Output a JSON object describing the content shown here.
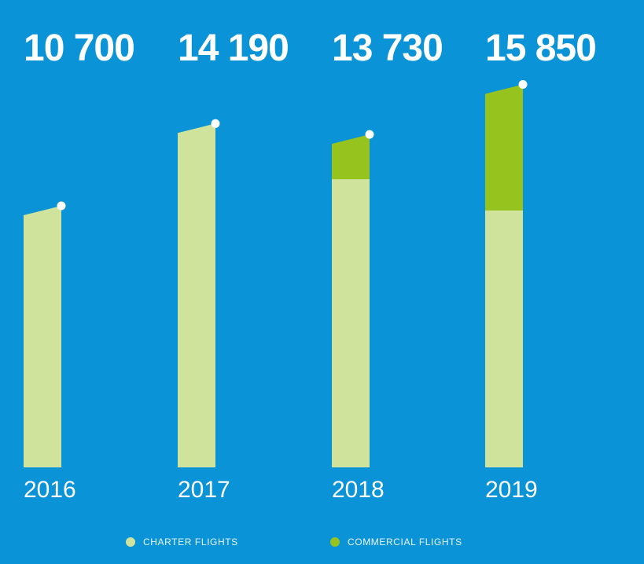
{
  "theme": {
    "background": "#0a93d6",
    "charter_color": "#d0e39d",
    "commercial_color": "#97c31e",
    "text_color": "#ffffff",
    "dot_color": "#ffffff",
    "legend_text_color": "#e9f6ff"
  },
  "chart_data": {
    "type": "bar",
    "categories": [
      "2016",
      "2017",
      "2018",
      "2019"
    ],
    "totals_display": [
      "10 700",
      "14 190",
      "13 730",
      "15 850"
    ],
    "series": [
      {
        "name": "CHARTER FLIGHTS",
        "values": [
          10700,
          14190,
          12230,
          10900
        ]
      },
      {
        "name": "COMMERCIAL FLIGHTS",
        "values": [
          0,
          0,
          1500,
          4950
        ]
      }
    ],
    "ylim": [
      0,
      17000
    ],
    "grid": false,
    "legend": "bottom-center"
  }
}
